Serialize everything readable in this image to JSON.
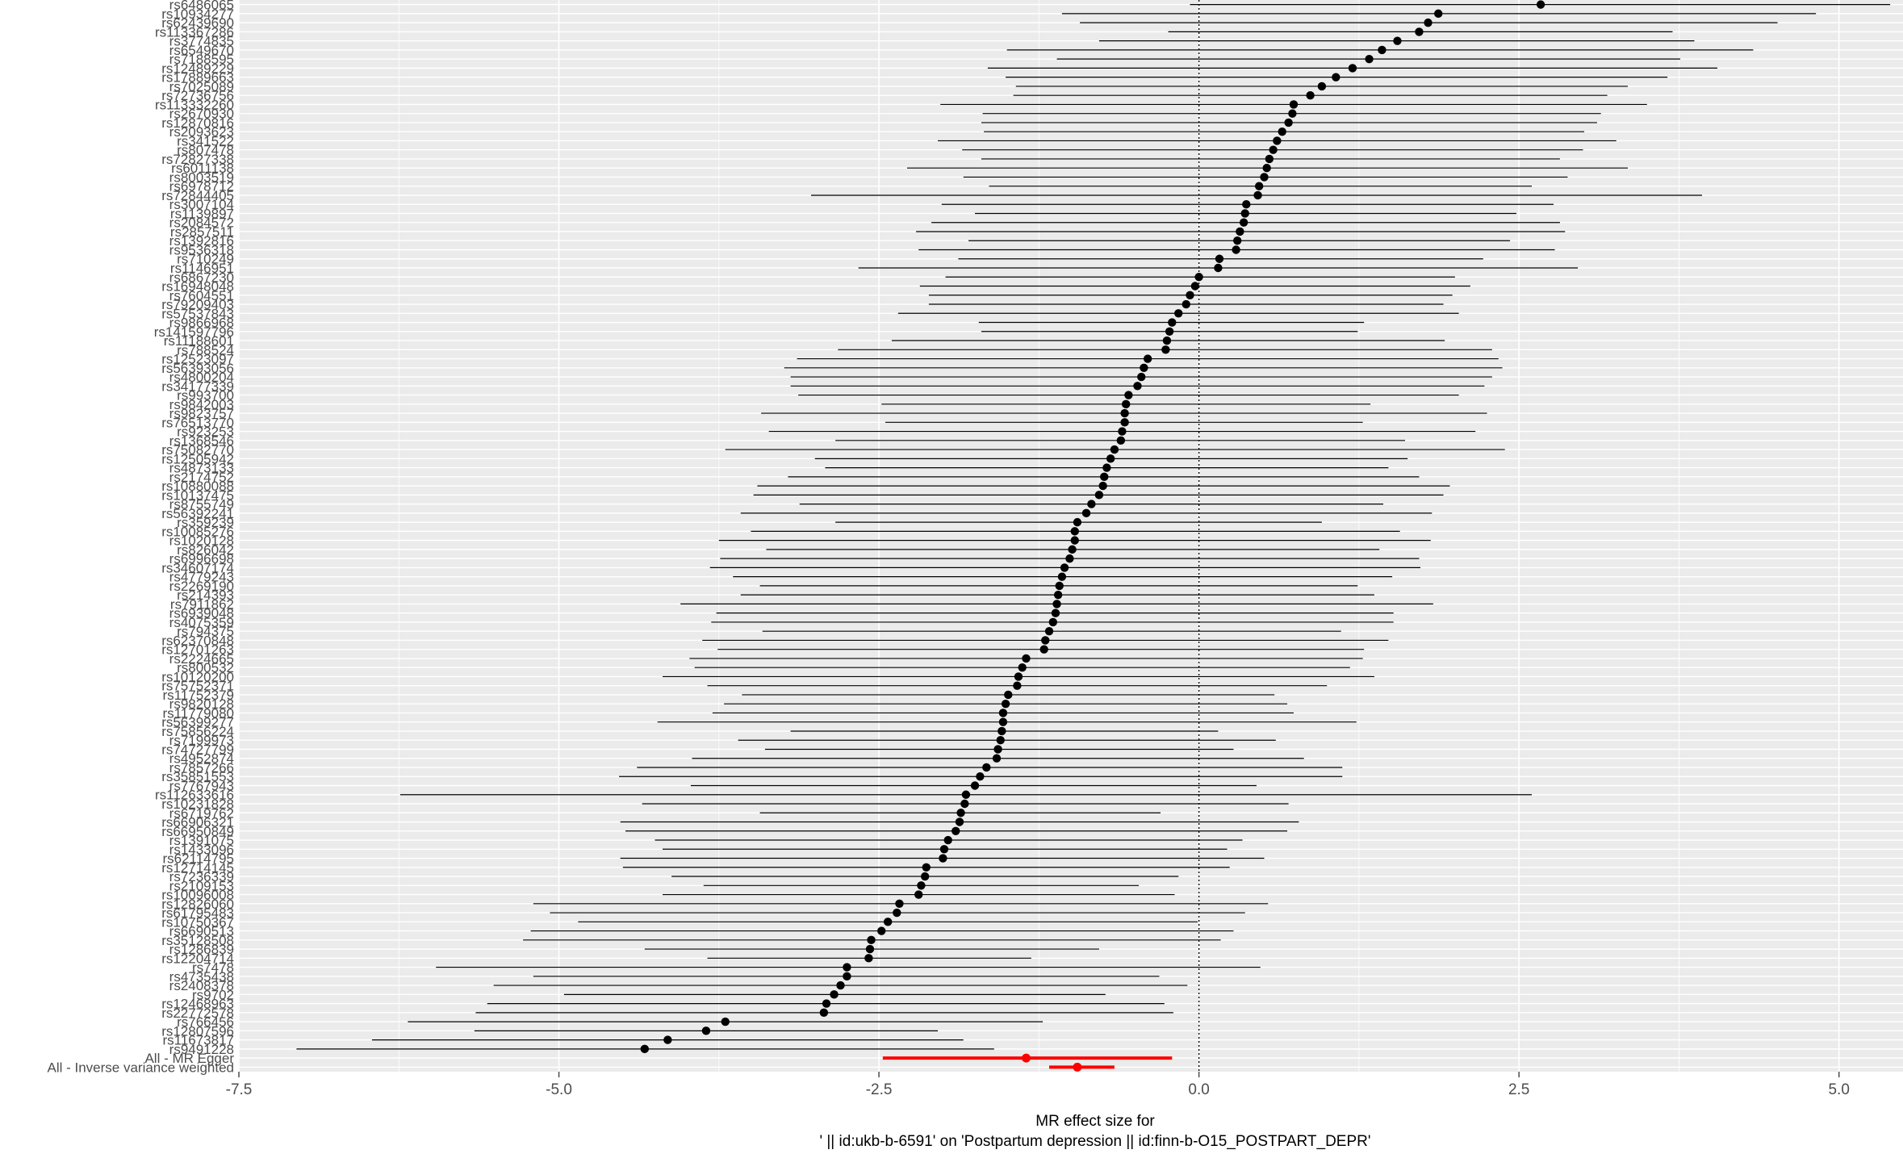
{
  "chart_data": {
    "type": "forest",
    "xlabel_lines": [
      "MR effect size for",
      "' || id:ukb-b-6591' on 'Postpartum depression || id:finn-b-O15_POSTPART_DEPR'"
    ],
    "xlim": [
      -7.5,
      5.5
    ],
    "xticks": [
      -7.5,
      -5.0,
      -2.5,
      0.0,
      2.5,
      5.0
    ],
    "xtick_labels": [
      "-7.5",
      "-5.0",
      "-2.5",
      "0.0",
      "2.5",
      "5.0"
    ],
    "reference_line": 0,
    "grid": true,
    "colors": {
      "panel": "#ebebeb",
      "grid": "#ffffff",
      "snp": "#000000",
      "summary": "#ff0000"
    },
    "snps": [
      {
        "label": "rs6486065",
        "b": 2.67,
        "lo": -0.07,
        "hi": 5.4
      },
      {
        "label": "rs10934277",
        "b": 1.87,
        "lo": -1.07,
        "hi": 4.82
      },
      {
        "label": "rs62439690",
        "b": 1.79,
        "lo": -0.93,
        "hi": 4.52
      },
      {
        "label": "rs113367286",
        "b": 1.72,
        "lo": -0.24,
        "hi": 3.7
      },
      {
        "label": "rs3774835",
        "b": 1.55,
        "lo": -0.78,
        "hi": 3.87
      },
      {
        "label": "rs6549670",
        "b": 1.43,
        "lo": -1.5,
        "hi": 4.33
      },
      {
        "label": "rs7188595",
        "b": 1.33,
        "lo": -1.11,
        "hi": 3.76
      },
      {
        "label": "rs12489229",
        "b": 1.2,
        "lo": -1.65,
        "hi": 4.05
      },
      {
        "label": "rs17889663",
        "b": 1.07,
        "lo": -1.51,
        "hi": 3.66
      },
      {
        "label": "rs7025089",
        "b": 0.96,
        "lo": -1.43,
        "hi": 3.35
      },
      {
        "label": "rs72736756",
        "b": 0.87,
        "lo": -1.45,
        "hi": 3.19
      },
      {
        "label": "rs113332260",
        "b": 0.74,
        "lo": -2.02,
        "hi": 3.5
      },
      {
        "label": "rs2670930",
        "b": 0.73,
        "lo": -1.69,
        "hi": 3.14
      },
      {
        "label": "rs12870816",
        "b": 0.7,
        "lo": -1.7,
        "hi": 3.11
      },
      {
        "label": "rs2093623",
        "b": 0.65,
        "lo": -1.68,
        "hi": 3.01
      },
      {
        "label": "rs341522",
        "b": 0.61,
        "lo": -2.04,
        "hi": 3.26
      },
      {
        "label": "rs807478",
        "b": 0.58,
        "lo": -1.85,
        "hi": 3.0
      },
      {
        "label": "rs72827338",
        "b": 0.55,
        "lo": -1.7,
        "hi": 2.82
      },
      {
        "label": "rs6011138",
        "b": 0.53,
        "lo": -2.28,
        "hi": 3.35
      },
      {
        "label": "rs8003519",
        "b": 0.51,
        "lo": -1.84,
        "hi": 2.88
      },
      {
        "label": "rs6978712",
        "b": 0.47,
        "lo": -1.64,
        "hi": 2.6
      },
      {
        "label": "rs72844405",
        "b": 0.46,
        "lo": -3.03,
        "hi": 3.93
      },
      {
        "label": "rs3007104",
        "b": 0.37,
        "lo": -2.01,
        "hi": 2.77
      },
      {
        "label": "rs1139897",
        "b": 0.36,
        "lo": -1.75,
        "hi": 2.48
      },
      {
        "label": "rs2084572",
        "b": 0.35,
        "lo": -2.09,
        "hi": 2.82
      },
      {
        "label": "rs2857511",
        "b": 0.32,
        "lo": -2.21,
        "hi": 2.86
      },
      {
        "label": "rs1392816",
        "b": 0.3,
        "lo": -1.8,
        "hi": 2.43
      },
      {
        "label": "rs9536318",
        "b": 0.29,
        "lo": -2.19,
        "hi": 2.78
      },
      {
        "label": "rs710249",
        "b": 0.16,
        "lo": -1.88,
        "hi": 2.22
      },
      {
        "label": "rs1146951",
        "b": 0.15,
        "lo": -2.66,
        "hi": 2.96
      },
      {
        "label": "rs6867230",
        "b": 0.0,
        "lo": -1.98,
        "hi": 2.0
      },
      {
        "label": "rs16948048",
        "b": -0.03,
        "lo": -2.18,
        "hi": 2.12
      },
      {
        "label": "rs7604551",
        "b": -0.07,
        "lo": -2.11,
        "hi": 1.98
      },
      {
        "label": "rs79209403",
        "b": -0.1,
        "lo": -2.11,
        "hi": 1.91
      },
      {
        "label": "rs57537843",
        "b": -0.16,
        "lo": -2.35,
        "hi": 2.03
      },
      {
        "label": "rs9866968",
        "b": -0.21,
        "lo": -1.72,
        "hi": 1.29
      },
      {
        "label": "rs141597796",
        "b": -0.23,
        "lo": -1.7,
        "hi": 1.24
      },
      {
        "label": "rs11188601",
        "b": -0.25,
        "lo": -2.4,
        "hi": 1.92
      },
      {
        "label": "rs788524",
        "b": -0.26,
        "lo": -2.82,
        "hi": 2.29
      },
      {
        "label": "rs12523097",
        "b": -0.4,
        "lo": -3.14,
        "hi": 2.34
      },
      {
        "label": "rs56393056",
        "b": -0.43,
        "lo": -3.24,
        "hi": 2.37
      },
      {
        "label": "rs4800204",
        "b": -0.45,
        "lo": -3.19,
        "hi": 2.29
      },
      {
        "label": "rs34177339",
        "b": -0.48,
        "lo": -3.19,
        "hi": 2.23
      },
      {
        "label": "rs993700",
        "b": -0.55,
        "lo": -3.13,
        "hi": 2.03
      },
      {
        "label": "rs9842003",
        "b": -0.57,
        "lo": -2.48,
        "hi": 1.34
      },
      {
        "label": "rs9823757",
        "b": -0.58,
        "lo": -3.42,
        "hi": 2.25
      },
      {
        "label": "rs76513770",
        "b": -0.58,
        "lo": -2.45,
        "hi": 1.28
      },
      {
        "label": "rs923253",
        "b": -0.6,
        "lo": -3.36,
        "hi": 2.16
      },
      {
        "label": "rs1368546",
        "b": -0.61,
        "lo": -2.84,
        "hi": 1.61
      },
      {
        "label": "rs75082770",
        "b": -0.66,
        "lo": -3.7,
        "hi": 2.39
      },
      {
        "label": "rs12505942",
        "b": -0.69,
        "lo": -3.0,
        "hi": 1.63
      },
      {
        "label": "rs4873133",
        "b": -0.72,
        "lo": -2.92,
        "hi": 1.48
      },
      {
        "label": "rs2174752",
        "b": -0.74,
        "lo": -3.21,
        "hi": 1.72
      },
      {
        "label": "rs10880088",
        "b": -0.75,
        "lo": -3.45,
        "hi": 1.96
      },
      {
        "label": "rs10137475",
        "b": -0.78,
        "lo": -3.48,
        "hi": 1.91
      },
      {
        "label": "rs8755749",
        "b": -0.84,
        "lo": -3.12,
        "hi": 1.44
      },
      {
        "label": "rs56392241",
        "b": -0.88,
        "lo": -3.58,
        "hi": 1.82
      },
      {
        "label": "rs359239",
        "b": -0.95,
        "lo": -2.84,
        "hi": 0.96
      },
      {
        "label": "rs10085276",
        "b": -0.97,
        "lo": -3.5,
        "hi": 1.57
      },
      {
        "label": "rs1020128",
        "b": -0.97,
        "lo": -3.75,
        "hi": 1.81
      },
      {
        "label": "rs826042",
        "b": -0.99,
        "lo": -3.38,
        "hi": 1.41
      },
      {
        "label": "rs6996698",
        "b": -1.01,
        "lo": -3.74,
        "hi": 1.72
      },
      {
        "label": "rs34607174",
        "b": -1.05,
        "lo": -3.82,
        "hi": 1.73
      },
      {
        "label": "rs4779243",
        "b": -1.07,
        "lo": -3.64,
        "hi": 1.51
      },
      {
        "label": "rs2269190",
        "b": -1.09,
        "lo": -3.43,
        "hi": 1.24
      },
      {
        "label": "rs214393",
        "b": -1.1,
        "lo": -3.58,
        "hi": 1.37
      },
      {
        "label": "rs7911862",
        "b": -1.11,
        "lo": -4.05,
        "hi": 1.83
      },
      {
        "label": "rs6939048",
        "b": -1.12,
        "lo": -3.77,
        "hi": 1.52
      },
      {
        "label": "rs4075359",
        "b": -1.14,
        "lo": -3.81,
        "hi": 1.52
      },
      {
        "label": "rs794375",
        "b": -1.17,
        "lo": -3.41,
        "hi": 1.11
      },
      {
        "label": "rs62370848",
        "b": -1.2,
        "lo": -3.88,
        "hi": 1.48
      },
      {
        "label": "rs12701263",
        "b": -1.21,
        "lo": -3.76,
        "hi": 1.29
      },
      {
        "label": "rs2224665",
        "b": -1.35,
        "lo": -3.98,
        "hi": 1.28
      },
      {
        "label": "rs800532",
        "b": -1.38,
        "lo": -3.94,
        "hi": 1.18
      },
      {
        "label": "rs10120200",
        "b": -1.41,
        "lo": -4.19,
        "hi": 1.37
      },
      {
        "label": "rs75752371",
        "b": -1.42,
        "lo": -3.84,
        "hi": 1.0
      },
      {
        "label": "rs11752379",
        "b": -1.49,
        "lo": -3.57,
        "hi": 0.59
      },
      {
        "label": "rs9820128",
        "b": -1.51,
        "lo": -3.71,
        "hi": 0.69
      },
      {
        "label": "rs11779080",
        "b": -1.53,
        "lo": -3.8,
        "hi": 0.74
      },
      {
        "label": "rs56399277",
        "b": -1.53,
        "lo": -4.23,
        "hi": 1.23
      },
      {
        "label": "rs75856224",
        "b": -1.54,
        "lo": -3.19,
        "hi": 0.15
      },
      {
        "label": "rs7199973",
        "b": -1.55,
        "lo": -3.6,
        "hi": 0.6
      },
      {
        "label": "rs74727799",
        "b": -1.57,
        "lo": -3.39,
        "hi": 0.27
      },
      {
        "label": "rs4952874",
        "b": -1.58,
        "lo": -3.96,
        "hi": 0.82
      },
      {
        "label": "rs7857266",
        "b": -1.66,
        "lo": -4.39,
        "hi": 1.12
      },
      {
        "label": "rs35851553",
        "b": -1.71,
        "lo": -4.53,
        "hi": 1.12
      },
      {
        "label": "rs7767943",
        "b": -1.75,
        "lo": -3.97,
        "hi": 0.45
      },
      {
        "label": "rs112633616",
        "b": -1.82,
        "lo": -6.24,
        "hi": 2.6
      },
      {
        "label": "rs10231828",
        "b": -1.83,
        "lo": -4.35,
        "hi": 0.7
      },
      {
        "label": "rs6719762",
        "b": -1.86,
        "lo": -3.43,
        "hi": -0.3
      },
      {
        "label": "rs66906321",
        "b": -1.87,
        "lo": -4.52,
        "hi": 0.78
      },
      {
        "label": "rs66950849",
        "b": -1.9,
        "lo": -4.48,
        "hi": 0.69
      },
      {
        "label": "rs1391075",
        "b": -1.96,
        "lo": -4.25,
        "hi": 0.34
      },
      {
        "label": "rs1433096",
        "b": -1.99,
        "lo": -4.19,
        "hi": 0.22
      },
      {
        "label": "rs62114795",
        "b": -2.0,
        "lo": -4.52,
        "hi": 0.51
      },
      {
        "label": "rs12714145",
        "b": -2.13,
        "lo": -4.5,
        "hi": 0.24
      },
      {
        "label": "rs7236339",
        "b": -2.14,
        "lo": -4.12,
        "hi": -0.16
      },
      {
        "label": "rs2109153",
        "b": -2.17,
        "lo": -3.87,
        "hi": -0.47
      },
      {
        "label": "rs10096008",
        "b": -2.19,
        "lo": -4.19,
        "hi": -0.19
      },
      {
        "label": "rs12826060",
        "b": -2.34,
        "lo": -5.2,
        "hi": 0.54
      },
      {
        "label": "rs61795483",
        "b": -2.36,
        "lo": -5.07,
        "hi": 0.36
      },
      {
        "label": "rs10750367",
        "b": -2.43,
        "lo": -4.85,
        "hi": -0.01
      },
      {
        "label": "rs6690513",
        "b": -2.48,
        "lo": -5.22,
        "hi": 0.27
      },
      {
        "label": "rs35128508",
        "b": -2.56,
        "lo": -5.28,
        "hi": 0.17
      },
      {
        "label": "rs1286839",
        "b": -2.57,
        "lo": -4.33,
        "hi": -0.78
      },
      {
        "label": "rs12204714",
        "b": -2.58,
        "lo": -3.84,
        "hi": -1.31
      },
      {
        "label": "rs7478",
        "b": -2.75,
        "lo": -5.96,
        "hi": 0.48
      },
      {
        "label": "rs4735438",
        "b": -2.75,
        "lo": -5.2,
        "hi": -0.31
      },
      {
        "label": "rs2408378",
        "b": -2.8,
        "lo": -5.51,
        "hi": -0.09
      },
      {
        "label": "rs9702",
        "b": -2.85,
        "lo": -4.96,
        "hi": -0.73
      },
      {
        "label": "rs12468963",
        "b": -2.91,
        "lo": -5.56,
        "hi": -0.27
      },
      {
        "label": "rs22772578",
        "b": -2.93,
        "lo": -5.65,
        "hi": -0.2
      },
      {
        "label": "rs766456",
        "b": -3.7,
        "lo": -6.18,
        "hi": -1.22
      },
      {
        "label": "rs12807596",
        "b": -3.85,
        "lo": -5.66,
        "hi": -2.04
      },
      {
        "label": "rs11673817",
        "b": -4.15,
        "lo": -6.46,
        "hi": -1.84
      },
      {
        "label": "rs9491228",
        "b": -4.33,
        "lo": -7.05,
        "hi": -1.6
      }
    ],
    "summaries": [
      {
        "label": "All - MR Egger",
        "b": -1.35,
        "lo": -2.47,
        "hi": -0.21
      },
      {
        "label": "All - Inverse variance weighted",
        "b": -0.95,
        "lo": -1.17,
        "hi": -0.66
      }
    ]
  }
}
